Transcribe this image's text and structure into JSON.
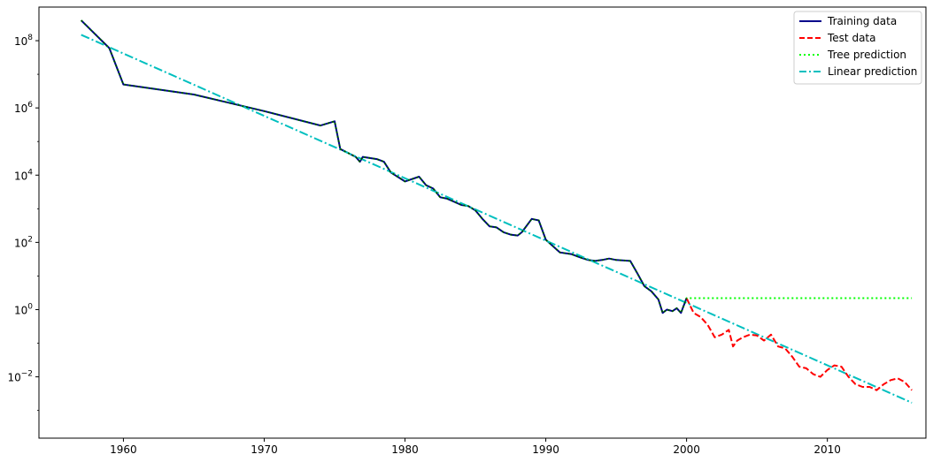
{
  "chart_data": {
    "type": "line",
    "title": "",
    "xlabel": "",
    "ylabel": "",
    "y_scale": "log",
    "xlim": [
      1954,
      2017
    ],
    "ylim": [
      0.00015,
      1000000000
    ],
    "grid": false,
    "legend_placement": "top-right",
    "x_ticks": [
      1960,
      1970,
      1980,
      1990,
      2000,
      2010
    ],
    "x_tick_labels": [
      "1960",
      "1970",
      "1980",
      "1990",
      "2000",
      "2010"
    ],
    "y_ticks": [
      0.01,
      1,
      100,
      10000,
      1000000,
      100000000
    ],
    "y_tick_labels": [
      {
        "base": "10",
        "exp": "−2"
      },
      {
        "base": "10",
        "exp": "0"
      },
      {
        "base": "10",
        "exp": "2"
      },
      {
        "base": "10",
        "exp": "4"
      },
      {
        "base": "10",
        "exp": "6"
      },
      {
        "base": "10",
        "exp": "8"
      }
    ],
    "series": [
      {
        "name": "Training data",
        "color": "#00008b",
        "style": "solid",
        "x": [
          1957.0,
          1959.0,
          1960.0,
          1965.0,
          1970.0,
          1974.0,
          1975.0,
          1975.4,
          1976.5,
          1976.8,
          1977.0,
          1978.0,
          1978.5,
          1979.0,
          1980.0,
          1981.0,
          1981.5,
          1982.0,
          1982.5,
          1983.0,
          1984.0,
          1984.5,
          1985.0,
          1985.5,
          1986.0,
          1986.5,
          1987.0,
          1987.5,
          1988.0,
          1988.3,
          1989.0,
          1989.5,
          1990.0,
          1991.0,
          1991.8,
          1992.5,
          1993.0,
          1993.5,
          1994.0,
          1994.5,
          1995.0,
          1996.0,
          1996.5,
          1997.0,
          1997.5,
          1998.0,
          1998.3,
          1998.6,
          1999.0,
          1999.3,
          1999.6,
          2000.0
        ],
        "y": [
          400000000,
          60000000,
          5000000,
          2500000,
          800000,
          300000,
          400000,
          60000,
          35000,
          25000,
          35000,
          30000,
          25000,
          12000,
          6500,
          9000,
          5000,
          4000,
          2200,
          2000,
          1300,
          1200,
          900,
          500,
          300,
          280,
          200,
          170,
          160,
          200,
          500,
          450,
          120,
          50,
          45,
          35,
          30,
          28,
          30,
          33,
          30,
          28,
          12,
          5,
          3.5,
          2,
          0.8,
          1.0,
          0.9,
          1.1,
          0.8,
          2.2
        ]
      },
      {
        "name": "Test data",
        "color": "#ff0000",
        "style": "dashed",
        "x": [
          2000.0,
          2000.5,
          2001.0,
          2001.5,
          2002.0,
          2002.5,
          2003.0,
          2003.3,
          2003.6,
          2004.0,
          2004.5,
          2005.0,
          2005.5,
          2006.0,
          2006.5,
          2007.0,
          2007.5,
          2008.0,
          2008.5,
          2009.0,
          2009.5,
          2010.0,
          2010.5,
          2011.0,
          2011.5,
          2012.0,
          2012.5,
          2013.0,
          2013.5,
          2014.0,
          2014.5,
          2015.0,
          2015.5,
          2016.0
        ],
        "y": [
          2.2,
          0.8,
          0.6,
          0.35,
          0.15,
          0.18,
          0.25,
          0.08,
          0.12,
          0.15,
          0.18,
          0.17,
          0.12,
          0.18,
          0.08,
          0.07,
          0.04,
          0.02,
          0.018,
          0.012,
          0.01,
          0.016,
          0.022,
          0.02,
          0.01,
          0.006,
          0.005,
          0.005,
          0.004,
          0.006,
          0.008,
          0.009,
          0.007,
          0.004
        ]
      },
      {
        "name": "Tree prediction",
        "color": "#00ff00",
        "style": "dotted",
        "x": [
          1957.0,
          1959.0,
          1960.0,
          1965.0,
          1970.0,
          1974.0,
          1975.0,
          1975.4,
          1976.5,
          1976.8,
          1977.0,
          1978.0,
          1978.5,
          1979.0,
          1980.0,
          1981.0,
          1981.5,
          1982.0,
          1982.5,
          1983.0,
          1984.0,
          1984.5,
          1985.0,
          1985.5,
          1986.0,
          1986.5,
          1987.0,
          1987.5,
          1988.0,
          1988.3,
          1989.0,
          1989.5,
          1990.0,
          1991.0,
          1991.8,
          1992.5,
          1993.0,
          1993.5,
          1994.0,
          1994.5,
          1995.0,
          1996.0,
          1996.5,
          1997.0,
          1997.5,
          1998.0,
          1998.3,
          1998.6,
          1999.0,
          1999.3,
          1999.6,
          2000.0,
          2016.0
        ],
        "y": [
          400000000,
          60000000,
          5000000,
          2500000,
          800000,
          300000,
          400000,
          60000,
          35000,
          25000,
          35000,
          30000,
          25000,
          12000,
          6500,
          9000,
          5000,
          4000,
          2200,
          2000,
          1300,
          1200,
          900,
          500,
          300,
          280,
          200,
          170,
          160,
          200,
          500,
          450,
          120,
          50,
          45,
          35,
          30,
          28,
          30,
          33,
          30,
          28,
          12,
          5,
          3.5,
          2,
          0.8,
          1.0,
          0.9,
          1.1,
          0.8,
          2.2,
          2.2
        ]
      },
      {
        "name": "Linear prediction",
        "color": "#00bfbf",
        "style": "dashdot",
        "x": [
          1957.0,
          2016.0
        ],
        "y": [
          150000000,
          0.0017
        ]
      }
    ]
  }
}
